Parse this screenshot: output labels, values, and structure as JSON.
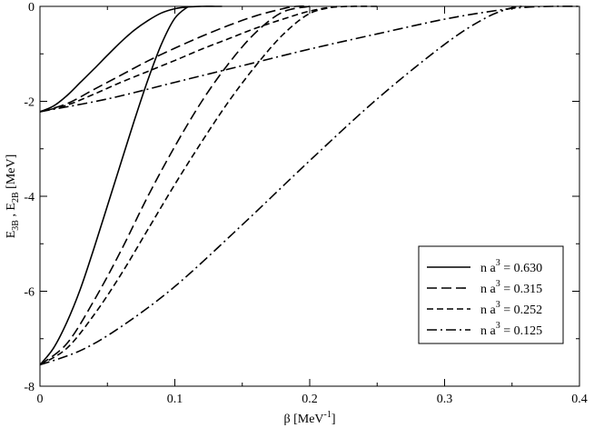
{
  "chart_data": {
    "type": "line",
    "xlabel": {
      "main": "β",
      "unit_open": " [MeV",
      "unit_exp": "-1",
      "unit_close": "]"
    },
    "ylabel": {
      "e": "E",
      "sub1": "3B",
      "sep": " , ",
      "e2": "E",
      "sub2": "2B",
      "unit": " [MeV]"
    },
    "xlim": [
      0,
      0.4
    ],
    "ylim": [
      -8,
      0
    ],
    "x_ticks": [
      {
        "value": 0,
        "label": "0"
      },
      {
        "value": 0.1,
        "label": "0.1"
      },
      {
        "value": 0.2,
        "label": "0.2"
      },
      {
        "value": 0.3,
        "label": "0.3"
      },
      {
        "value": 0.4,
        "label": "0.4"
      }
    ],
    "y_ticks": [
      {
        "value": 0,
        "label": "0"
      },
      {
        "value": -2,
        "label": "-2"
      },
      {
        "value": -4,
        "label": "-4"
      },
      {
        "value": -6,
        "label": "-6"
      },
      {
        "value": -8,
        "label": "-8"
      }
    ],
    "grid": false,
    "legend_position": "bottom-right",
    "series": [
      {
        "name_prefix": "n a",
        "name_exp": "3",
        "name_value": " = 0.630",
        "dash": "solid",
        "x": [
          0,
          0.01,
          0.02,
          0.03,
          0.04,
          0.05,
          0.06,
          0.07,
          0.08,
          0.09,
          0.1,
          0.11,
          0.12,
          0.13,
          0.135
        ],
        "y": [
          -2.22,
          -2.1,
          -1.88,
          -1.6,
          -1.32,
          -1.03,
          -0.75,
          -0.5,
          -0.3,
          -0.14,
          -0.05,
          -0.01,
          0,
          0,
          0
        ]
      },
      {
        "name_prefix": "n a",
        "name_exp": "3",
        "name_value": " = 0.630",
        "dash": "solid",
        "x": [
          0,
          0.01,
          0.02,
          0.03,
          0.04,
          0.05,
          0.06,
          0.07,
          0.08,
          0.09,
          0.1,
          0.11
        ],
        "y": [
          -7.55,
          -7.2,
          -6.65,
          -5.95,
          -5.1,
          -4.2,
          -3.3,
          -2.4,
          -1.55,
          -0.8,
          -0.25,
          0
        ]
      },
      {
        "name_prefix": "n a",
        "name_exp": "3",
        "name_value": " = 0.315",
        "dash": "longdash",
        "x": [
          0,
          0.02,
          0.04,
          0.06,
          0.08,
          0.1,
          0.12,
          0.14,
          0.16,
          0.18,
          0.19,
          0.2
        ],
        "y": [
          -2.22,
          -2.05,
          -1.75,
          -1.45,
          -1.15,
          -0.88,
          -0.63,
          -0.4,
          -0.2,
          -0.05,
          0,
          0
        ]
      },
      {
        "name_prefix": "n a",
        "name_exp": "3",
        "name_value": " = 0.315",
        "dash": "longdash",
        "x": [
          0,
          0.02,
          0.04,
          0.06,
          0.08,
          0.1,
          0.12,
          0.14,
          0.16,
          0.18,
          0.2
        ],
        "y": [
          -7.55,
          -7.1,
          -6.2,
          -5.15,
          -4.0,
          -2.95,
          -2.0,
          -1.2,
          -0.55,
          -0.12,
          0
        ]
      },
      {
        "name_prefix": "n a",
        "name_exp": "3",
        "name_value": " = 0.252",
        "dash": "shortdash",
        "x": [
          0,
          0.02,
          0.04,
          0.06,
          0.08,
          0.1,
          0.12,
          0.14,
          0.16,
          0.18,
          0.2,
          0.22,
          0.25
        ],
        "y": [
          -2.22,
          -2.08,
          -1.85,
          -1.6,
          -1.37,
          -1.14,
          -0.9,
          -0.68,
          -0.46,
          -0.27,
          -0.1,
          -0.01,
          0
        ]
      },
      {
        "name_prefix": "n a",
        "name_exp": "3",
        "name_value": " = 0.252",
        "dash": "shortdash",
        "x": [
          0,
          0.02,
          0.04,
          0.06,
          0.08,
          0.1,
          0.12,
          0.14,
          0.16,
          0.18,
          0.2,
          0.22
        ],
        "y": [
          -7.55,
          -7.2,
          -6.5,
          -5.65,
          -4.7,
          -3.75,
          -2.85,
          -2.0,
          -1.25,
          -0.6,
          -0.15,
          0
        ]
      },
      {
        "name_prefix": "n a",
        "name_exp": "3",
        "name_value": " = 0.125",
        "dash": "dashdot",
        "x": [
          0,
          0.05,
          0.1,
          0.15,
          0.2,
          0.25,
          0.3,
          0.34,
          0.36,
          0.38,
          0.4
        ],
        "y": [
          -2.22,
          -1.95,
          -1.6,
          -1.25,
          -0.9,
          -0.58,
          -0.27,
          -0.08,
          -0.02,
          0,
          0
        ]
      },
      {
        "name_prefix": "n a",
        "name_exp": "3",
        "name_value": " = 0.125",
        "dash": "dashdot",
        "x": [
          0,
          0.03,
          0.06,
          0.1,
          0.15,
          0.2,
          0.25,
          0.3,
          0.33,
          0.35,
          0.36
        ],
        "y": [
          -7.55,
          -7.25,
          -6.75,
          -5.9,
          -4.6,
          -3.25,
          -1.95,
          -0.8,
          -0.25,
          -0.03,
          0
        ]
      }
    ],
    "legend": [
      {
        "prefix": "n a",
        "exp": "3",
        "value": " = 0.630",
        "dash": "solid"
      },
      {
        "prefix": "n a",
        "exp": "3",
        "value": " = 0.315",
        "dash": "longdash"
      },
      {
        "prefix": "n a",
        "exp": "3",
        "value": " = 0.252",
        "dash": "shortdash"
      },
      {
        "prefix": "n a",
        "exp": "3",
        "value": " = 0.125",
        "dash": "dashdot"
      }
    ],
    "colors": {
      "line": "#000000",
      "background": "#ffffff",
      "frame": "#000000"
    }
  }
}
